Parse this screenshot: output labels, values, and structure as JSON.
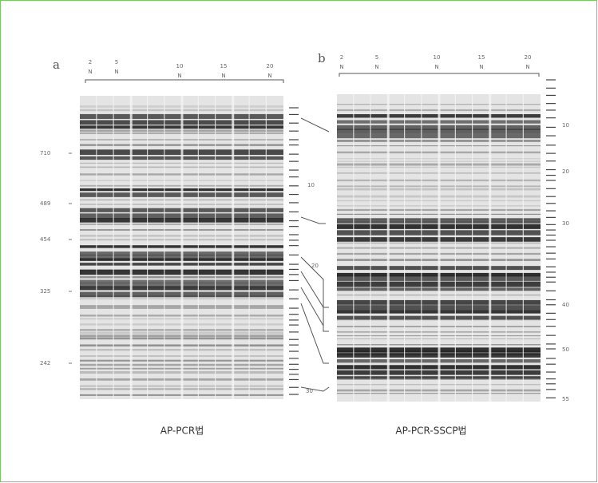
{
  "panels": [
    {
      "letter": "a",
      "lanes": [
        {
          "top": "2",
          "bottom": "N"
        },
        {
          "top": "5",
          "bottom": "N"
        },
        {
          "top": "10",
          "bottom": "N"
        },
        {
          "top": "15",
          "bottom": "N"
        },
        {
          "top": "20",
          "bottom": "N"
        }
      ],
      "size_markers": [
        "710",
        "489",
        "454",
        "325",
        "242"
      ],
      "band_labels": [
        "10",
        "20",
        "30"
      ],
      "caption": "AP-PCR법"
    },
    {
      "letter": "b",
      "lanes": [
        {
          "top": "2",
          "bottom": "N"
        },
        {
          "top": "5",
          "bottom": "N"
        },
        {
          "top": "10",
          "bottom": "N"
        },
        {
          "top": "15",
          "bottom": "N"
        },
        {
          "top": "20",
          "bottom": "N"
        }
      ],
      "band_labels": [
        "10",
        "20",
        "30",
        "40",
        "50",
        "55"
      ],
      "caption": "AP-PCR-SSCP법"
    }
  ]
}
